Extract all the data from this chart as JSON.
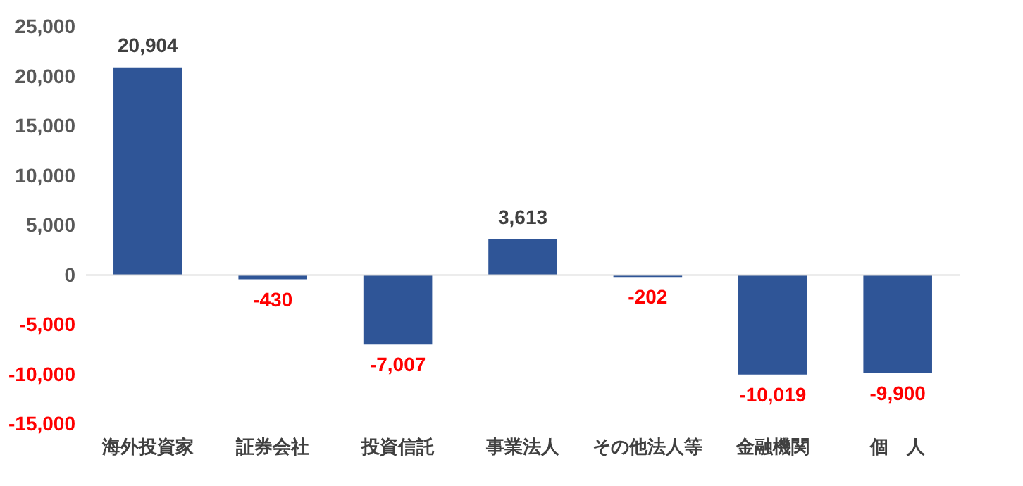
{
  "chart_data": {
    "type": "bar",
    "categories": [
      "海外投資家",
      "証券会社",
      "投資信託",
      "事業法人",
      "その他法人等",
      "金融機関",
      "個　人"
    ],
    "values": [
      20904,
      -430,
      -7007,
      3613,
      -202,
      -10019,
      -9900
    ],
    "value_labels": [
      "20,904",
      "-430",
      "-7,007",
      "3,613",
      "-202",
      "-10,019",
      "-9,900"
    ],
    "color": "#2f5597",
    "ylim": [
      -15000,
      25000
    ],
    "yticks": [
      {
        "value": -15000,
        "label": "-15,000"
      },
      {
        "value": -10000,
        "label": "-10,000"
      },
      {
        "value": -5000,
        "label": "-5,000"
      },
      0,
      {
        "value": 5000,
        "label": "5,000"
      },
      {
        "value": 10000,
        "label": "10,000"
      },
      {
        "value": 15000,
        "label": "15,000"
      },
      {
        "value": 20000,
        "label": "20,000"
      },
      {
        "value": 25000,
        "label": "25,000"
      }
    ],
    "grid": false,
    "ref_lines": [
      {
        "axis": "y",
        "value": 0,
        "color": "#d9d9d9"
      }
    ]
  }
}
